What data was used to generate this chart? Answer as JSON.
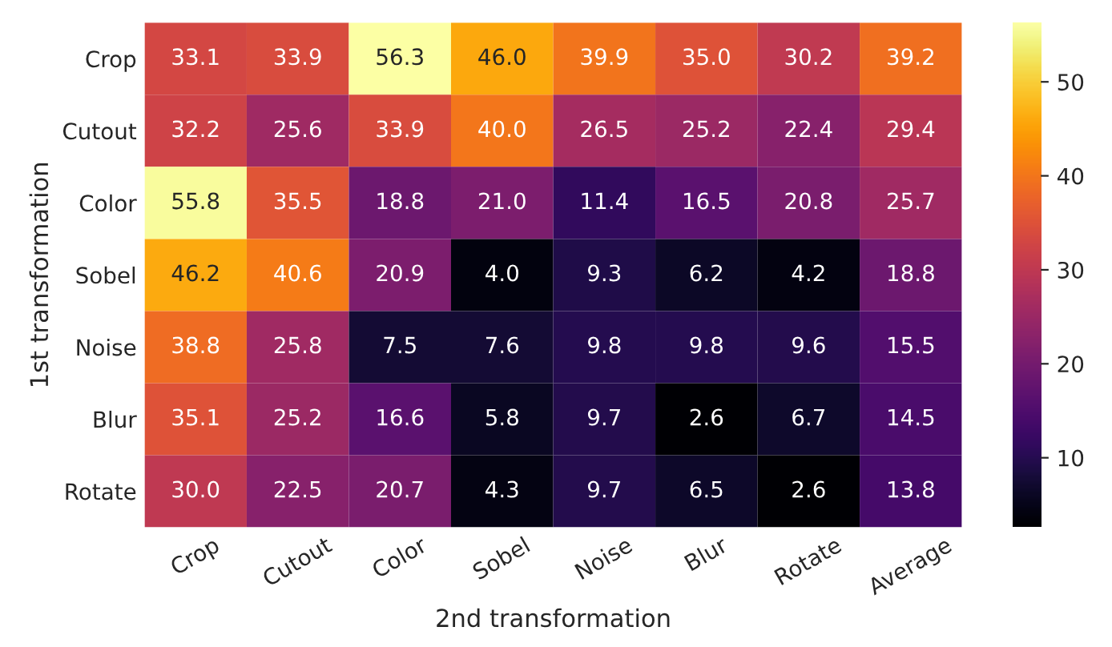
{
  "chart_data": {
    "type": "heatmap",
    "xlabel": "2nd transformation",
    "ylabel": "1st transformation",
    "categories": [
      "Crop",
      "Cutout",
      "Color",
      "Sobel",
      "Noise",
      "Blur",
      "Rotate",
      "Average"
    ],
    "y_categories": [
      "Crop",
      "Cutout",
      "Color",
      "Sobel",
      "Noise",
      "Blur",
      "Rotate"
    ],
    "cells": [
      [
        33.1,
        33.9,
        56.3,
        46.0,
        39.9,
        35.0,
        30.2,
        39.2
      ],
      [
        32.2,
        25.6,
        33.9,
        40.0,
        26.5,
        25.2,
        22.4,
        29.4
      ],
      [
        55.8,
        35.5,
        18.8,
        21.0,
        11.4,
        16.5,
        20.8,
        25.7
      ],
      [
        46.2,
        40.6,
        20.9,
        4.0,
        9.3,
        6.2,
        4.2,
        18.8
      ],
      [
        38.8,
        25.8,
        7.5,
        7.6,
        9.8,
        9.8,
        9.6,
        15.5
      ],
      [
        35.1,
        25.2,
        16.6,
        5.8,
        9.7,
        2.6,
        6.7,
        14.5
      ],
      [
        30.0,
        22.5,
        20.7,
        4.3,
        9.7,
        6.5,
        2.6,
        13.8
      ]
    ],
    "cell_labels": [
      [
        "33.1",
        "33.9",
        "56.3",
        "46.0",
        "39.9",
        "35.0",
        "30.2",
        "39.2"
      ],
      [
        "32.2",
        "25.6",
        "33.9",
        "40.0",
        "26.5",
        "25.2",
        "22.4",
        "29.4"
      ],
      [
        "55.8",
        "35.5",
        "18.8",
        "21.0",
        "11.4",
        "16.5",
        "20.8",
        "25.7"
      ],
      [
        "46.2",
        "40.6",
        "20.9",
        "4.0",
        "9.3",
        "6.2",
        "4.2",
        "18.8"
      ],
      [
        "38.8",
        "25.8",
        "7.5",
        "7.6",
        "9.8",
        "9.8",
        "9.6",
        "15.5"
      ],
      [
        "35.1",
        "25.2",
        "16.6",
        "5.8",
        "9.7",
        "2.6",
        "6.7",
        "14.5"
      ],
      [
        "30.0",
        "22.5",
        "20.7",
        "4.3",
        "9.7",
        "6.5",
        "2.6",
        "13.8"
      ]
    ],
    "clim": [
      2.6,
      56.3
    ],
    "cticks": [
      10,
      20,
      30,
      40,
      50
    ]
  }
}
